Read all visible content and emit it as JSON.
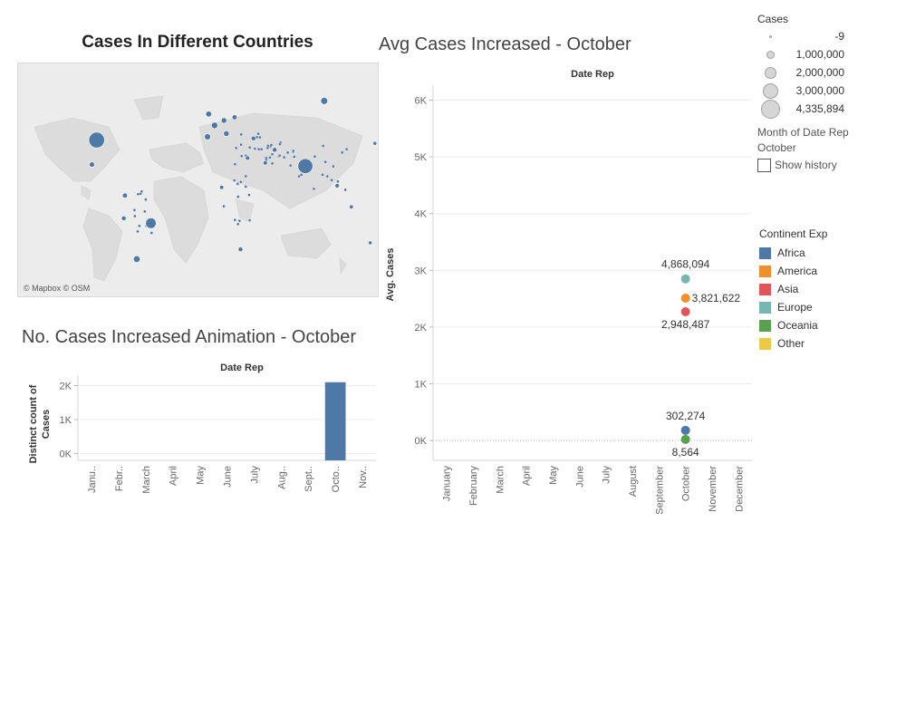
{
  "dashboard": {
    "map_title": "Cases In Different Countries",
    "avg_title": "Avg Cases Increased - October",
    "bar_title": "No. Cases Increased Animation - October",
    "map_attribution": "© Mapbox © OSM"
  },
  "size_legend": {
    "title": "Cases",
    "items": [
      "-9",
      "1,000,000",
      "2,000,000",
      "3,000,000",
      "4,335,894"
    ]
  },
  "month_filter": {
    "label": "Month of Date Rep",
    "value": "October",
    "show_history_label": "Show history",
    "show_history_checked": false
  },
  "color_legend": {
    "title": "Continent Exp",
    "items": [
      {
        "label": "Africa",
        "color": "#4e79a7"
      },
      {
        "label": "America",
        "color": "#f28e2b"
      },
      {
        "label": "Asia",
        "color": "#e15759"
      },
      {
        "label": "Europe",
        "color": "#76b7b2"
      },
      {
        "label": "Oceania",
        "color": "#59a14f"
      },
      {
        "label": "Other",
        "color": "#edc948"
      }
    ]
  },
  "chart_data": [
    {
      "type": "scatter",
      "title": "Avg Cases Increased - October",
      "xlabel": "Date Rep",
      "ylabel": "Avg. Cases",
      "categories": [
        "January",
        "February",
        "March",
        "April",
        "May",
        "June",
        "July",
        "August",
        "September",
        "October",
        "November",
        "December"
      ],
      "yticks": [
        "0K",
        "1K",
        "2K",
        "3K",
        "4K",
        "5K",
        "6K"
      ],
      "ylim": [
        -350,
        6200
      ],
      "grid": true,
      "series": [
        {
          "name": "Europe",
          "color": "#76b7b2",
          "x": "October",
          "y": 2850,
          "label": "4,868,094",
          "label_pos": "above"
        },
        {
          "name": "America",
          "color": "#f28e2b",
          "x": "October",
          "y": 2510,
          "label": "3,821,622",
          "label_pos": "right"
        },
        {
          "name": "Asia",
          "color": "#e15759",
          "x": "October",
          "y": 2270,
          "label": "2,948,487",
          "label_pos": "below"
        },
        {
          "name": "Africa",
          "color": "#4e79a7",
          "x": "October",
          "y": 180,
          "label": "302,274",
          "label_pos": "above"
        },
        {
          "name": "Oceania",
          "color": "#59a14f",
          "x": "October",
          "y": 20,
          "label": "8,564",
          "label_pos": "below"
        }
      ]
    },
    {
      "type": "bar",
      "title": "No. Cases Increased Animation - October",
      "xlabel": "Date Rep",
      "ylabel": "Distinct count of Cases",
      "categories": [
        "Janu..",
        "Febr..",
        "March",
        "April",
        "May",
        "June",
        "July",
        "Aug..",
        "Sept..",
        "Octo..",
        "Nov.."
      ],
      "values": [
        0,
        0,
        0,
        0,
        0,
        0,
        0,
        0,
        0,
        2100,
        0
      ],
      "yticks": [
        "0K",
        "1K",
        "2K"
      ],
      "ylim": [
        -200,
        2200
      ],
      "color": "#4e79a7"
    },
    {
      "type": "map",
      "title": "Cases In Different Countries",
      "color": "#4e79a7",
      "points": [
        {
          "lon": -98,
          "lat": 38,
          "size": 4.3
        },
        {
          "lon": 79,
          "lat": 22,
          "size": 4.0
        },
        {
          "lon": -52,
          "lat": -13,
          "size": 2.5
        },
        {
          "lon": 95,
          "lat": 62,
          "size": 1.3
        },
        {
          "lon": -64,
          "lat": -35,
          "size": 1.2
        },
        {
          "lon": -3,
          "lat": 54,
          "size": 0.9
        },
        {
          "lon": 2,
          "lat": 47,
          "size": 1.1
        },
        {
          "lon": 10,
          "lat": 50,
          "size": 0.8
        },
        {
          "lon": -4,
          "lat": 40,
          "size": 1.0
        },
        {
          "lon": 12,
          "lat": 42,
          "size": 0.8
        },
        {
          "lon": 19,
          "lat": 52,
          "size": 0.6
        },
        {
          "lon": 35,
          "lat": 39,
          "size": 0.5
        },
        {
          "lon": -74,
          "lat": 4,
          "size": 0.6
        },
        {
          "lon": -102,
          "lat": 23,
          "size": 0.7
        },
        {
          "lon": 53,
          "lat": 32,
          "size": 0.5
        },
        {
          "lon": 24,
          "lat": -29,
          "size": 0.5
        },
        {
          "lon": -75,
          "lat": -10,
          "size": 0.5
        },
        {
          "lon": 45,
          "lat": 24,
          "size": 0.4
        },
        {
          "lon": 30,
          "lat": 27,
          "size": 0.4
        },
        {
          "lon": 106,
          "lat": 10,
          "size": 0.4
        },
        {
          "lon": 118,
          "lat": -3,
          "size": 0.3
        },
        {
          "lon": 8,
          "lat": 9,
          "size": 0.3
        },
        {
          "lon": 138,
          "lat": 36,
          "size": 0.2
        },
        {
          "lon": 134,
          "lat": -25,
          "size": 0.2
        }
      ]
    }
  ]
}
